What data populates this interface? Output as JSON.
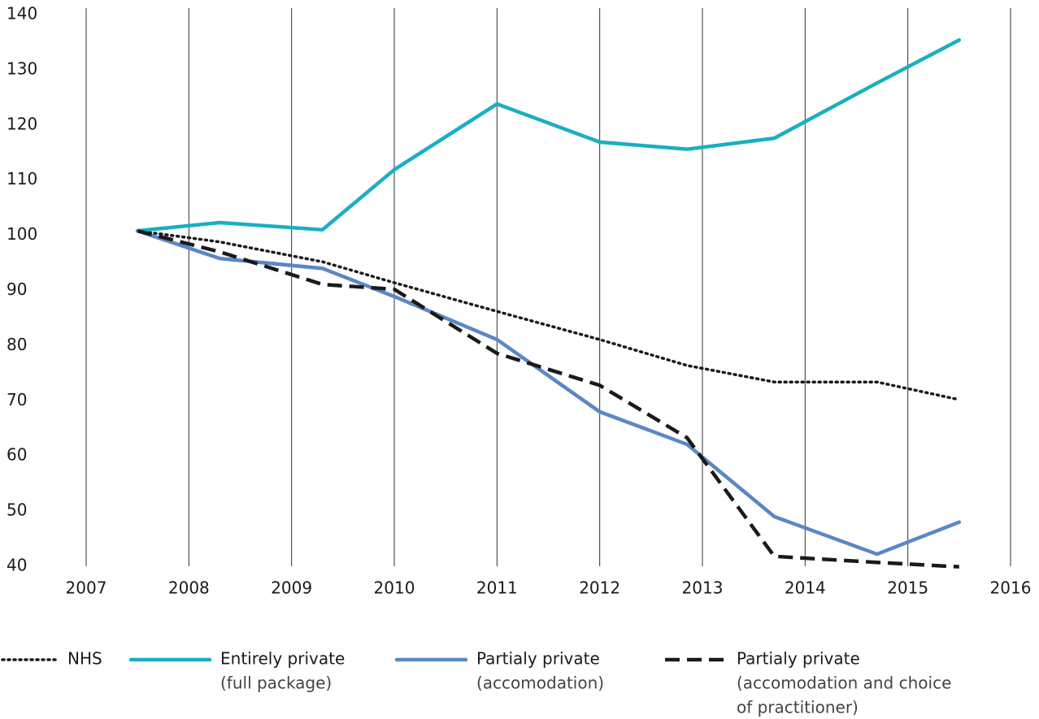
{
  "chart_data": {
    "type": "line",
    "x": [
      2007.5,
      2008.3,
      2009.3,
      2010,
      2011,
      2012,
      2012.85,
      2013.7,
      2014.7,
      2015.5
    ],
    "series": [
      {
        "name": "NHS",
        "color": "#1a1a1a",
        "dash": "dotted",
        "values": [
          100.8,
          98.8,
          95.2,
          91.4,
          86.2,
          81.1,
          76.4,
          73.4,
          73.4,
          70.2
        ]
      },
      {
        "name": "Entirely private",
        "legend_note": [
          "(full package)"
        ],
        "color": "#1aafc0",
        "dash": "solid",
        "values": [
          100.8,
          102.3,
          101.0,
          111.9,
          123.8,
          116.9,
          115.6,
          117.6,
          127.6,
          135.4
        ]
      },
      {
        "name": "Partialy private",
        "legend_note": [
          "(accomodation)"
        ],
        "color": "#5b87c5",
        "dash": "solid",
        "values": [
          100.8,
          95.8,
          94.0,
          88.9,
          81.1,
          68.0,
          62.1,
          49.0,
          42.2,
          48.0
        ]
      },
      {
        "name": "Partialy private",
        "legend_note": [
          "(accomodation and choice",
          "of practitioner)"
        ],
        "color": "#1a1a1a",
        "dash": "dashed",
        "values": [
          100.8,
          97.0,
          91.1,
          90.2,
          78.6,
          72.8,
          63.3,
          41.8,
          40.7,
          39.9
        ]
      }
    ],
    "xlim": [
      2007,
      2016
    ],
    "xticks": [
      2007,
      2008,
      2009,
      2010,
      2011,
      2012,
      2013,
      2014,
      2015,
      2016
    ],
    "ylim": [
      40,
      140
    ],
    "yticks": [
      40,
      50,
      60,
      70,
      80,
      90,
      100,
      110,
      120,
      130,
      140
    ],
    "grid": "x"
  }
}
